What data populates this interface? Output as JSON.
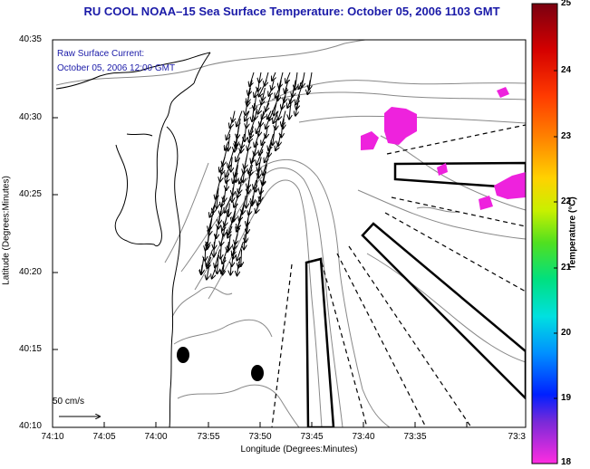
{
  "title": "RU COOL  NOAA–15  Sea Surface Temperature:  October 05, 2006 1103 GMT",
  "annotation": {
    "line1": "Raw Surface Current:",
    "line2": "October 05, 2006 12:00 GMT"
  },
  "axes": {
    "xlabel": "Longitude (Degrees:Minutes)",
    "ylabel": "Latitude (Degrees:Minutes)",
    "xticks": [
      "74:10",
      "74:05",
      "74:00",
      "73:55",
      "73:50",
      "73:45",
      "73:40",
      "73:35",
      "73:3"
    ],
    "yticks": [
      "40:35",
      "40:30",
      "40:25",
      "40:20",
      "40:15",
      "40:10"
    ]
  },
  "scale_vector": {
    "label": "50 cm/s"
  },
  "colorbar": {
    "label": "Temperature (°C)",
    "ticks": [
      "25",
      "24",
      "23",
      "22",
      "21",
      "20",
      "19",
      "18"
    ],
    "colors": [
      "#7a0010",
      "#d40000",
      "#ff3a00",
      "#ff8a00",
      "#ffd200",
      "#c8f000",
      "#50e020",
      "#00e080",
      "#00e0e0",
      "#0090ff",
      "#0020ff",
      "#7a2ad8",
      "#ff2ce0"
    ]
  },
  "colors": {
    "title": "#1a1aa8",
    "warm_patch": "#ee22dd"
  }
}
